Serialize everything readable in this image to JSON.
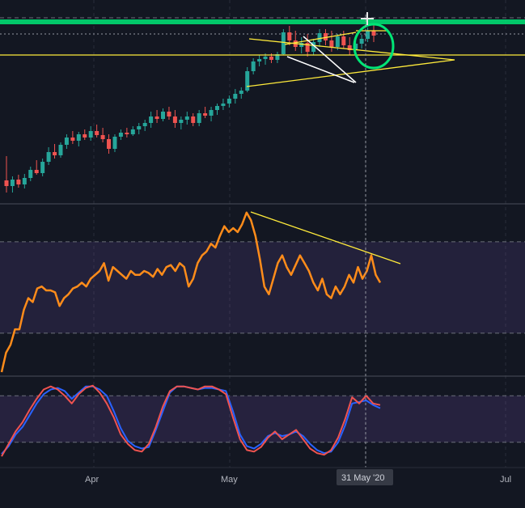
{
  "chart_data": [
    {
      "type": "candlestick",
      "colors": {
        "up": "#26a69a",
        "down": "#ef5350",
        "accent": "#00e676",
        "annotation": "#ffeb3b"
      },
      "candles": [
        {
          "o": 205,
          "h": 235,
          "l": 190,
          "c": 198
        },
        {
          "o": 198,
          "h": 210,
          "l": 190,
          "c": 206
        },
        {
          "o": 206,
          "h": 212,
          "l": 196,
          "c": 200
        },
        {
          "o": 200,
          "h": 213,
          "l": 195,
          "c": 208
        },
        {
          "o": 208,
          "h": 222,
          "l": 204,
          "c": 218
        },
        {
          "o": 218,
          "h": 230,
          "l": 212,
          "c": 214
        },
        {
          "o": 214,
          "h": 232,
          "l": 210,
          "c": 228
        },
        {
          "o": 228,
          "h": 246,
          "l": 224,
          "c": 240
        },
        {
          "o": 240,
          "h": 250,
          "l": 232,
          "c": 236
        },
        {
          "o": 236,
          "h": 252,
          "l": 233,
          "c": 249
        },
        {
          "o": 249,
          "h": 262,
          "l": 244,
          "c": 258
        },
        {
          "o": 258,
          "h": 266,
          "l": 250,
          "c": 254
        },
        {
          "o": 254,
          "h": 265,
          "l": 247,
          "c": 262
        },
        {
          "o": 262,
          "h": 268,
          "l": 255,
          "c": 258
        },
        {
          "o": 258,
          "h": 272,
          "l": 254,
          "c": 266
        },
        {
          "o": 266,
          "h": 274,
          "l": 258,
          "c": 261
        },
        {
          "o": 261,
          "h": 270,
          "l": 252,
          "c": 256
        },
        {
          "o": 256,
          "h": 262,
          "l": 238,
          "c": 244
        },
        {
          "o": 244,
          "h": 262,
          "l": 240,
          "c": 259
        },
        {
          "o": 259,
          "h": 268,
          "l": 255,
          "c": 264
        },
        {
          "o": 264,
          "h": 270,
          "l": 258,
          "c": 262
        },
        {
          "o": 262,
          "h": 272,
          "l": 260,
          "c": 268
        },
        {
          "o": 268,
          "h": 276,
          "l": 262,
          "c": 272
        },
        {
          "o": 272,
          "h": 280,
          "l": 266,
          "c": 276
        },
        {
          "o": 276,
          "h": 290,
          "l": 270,
          "c": 284
        },
        {
          "o": 284,
          "h": 292,
          "l": 276,
          "c": 281
        },
        {
          "o": 281,
          "h": 294,
          "l": 278,
          "c": 290
        },
        {
          "o": 290,
          "h": 296,
          "l": 280,
          "c": 284
        },
        {
          "o": 284,
          "h": 292,
          "l": 270,
          "c": 276
        },
        {
          "o": 276,
          "h": 284,
          "l": 268,
          "c": 280
        },
        {
          "o": 280,
          "h": 290,
          "l": 274,
          "c": 284
        },
        {
          "o": 284,
          "h": 288,
          "l": 272,
          "c": 276
        },
        {
          "o": 276,
          "h": 292,
          "l": 272,
          "c": 288
        },
        {
          "o": 288,
          "h": 296,
          "l": 282,
          "c": 285
        },
        {
          "o": 285,
          "h": 296,
          "l": 278,
          "c": 292
        },
        {
          "o": 292,
          "h": 300,
          "l": 286,
          "c": 297
        },
        {
          "o": 297,
          "h": 306,
          "l": 292,
          "c": 300
        },
        {
          "o": 300,
          "h": 310,
          "l": 295,
          "c": 306
        },
        {
          "o": 306,
          "h": 318,
          "l": 300,
          "c": 312
        },
        {
          "o": 312,
          "h": 320,
          "l": 306,
          "c": 316
        },
        {
          "o": 316,
          "h": 345,
          "l": 314,
          "c": 340
        },
        {
          "o": 340,
          "h": 356,
          "l": 336,
          "c": 352
        },
        {
          "o": 352,
          "h": 360,
          "l": 346,
          "c": 355
        },
        {
          "o": 355,
          "h": 362,
          "l": 348,
          "c": 358
        },
        {
          "o": 358,
          "h": 362,
          "l": 350,
          "c": 354
        },
        {
          "o": 354,
          "h": 364,
          "l": 350,
          "c": 361
        },
        {
          "o": 361,
          "h": 392,
          "l": 360,
          "c": 388
        },
        {
          "o": 388,
          "h": 396,
          "l": 372,
          "c": 378
        },
        {
          "o": 378,
          "h": 390,
          "l": 365,
          "c": 370
        },
        {
          "o": 370,
          "h": 382,
          "l": 362,
          "c": 375
        },
        {
          "o": 375,
          "h": 386,
          "l": 358,
          "c": 364
        },
        {
          "o": 364,
          "h": 380,
          "l": 360,
          "c": 376
        },
        {
          "o": 376,
          "h": 392,
          "l": 370,
          "c": 387
        },
        {
          "o": 387,
          "h": 392,
          "l": 372,
          "c": 378
        },
        {
          "o": 378,
          "h": 390,
          "l": 364,
          "c": 370
        },
        {
          "o": 370,
          "h": 386,
          "l": 366,
          "c": 383
        },
        {
          "o": 383,
          "h": 390,
          "l": 368,
          "c": 372
        },
        {
          "o": 372,
          "h": 382,
          "l": 360,
          "c": 366
        },
        {
          "o": 366,
          "h": 378,
          "l": 362,
          "c": 374
        },
        {
          "o": 374,
          "h": 385,
          "l": 368,
          "c": 380
        },
        {
          "o": 380,
          "h": 394,
          "l": 376,
          "c": 390
        },
        {
          "o": 390,
          "h": 398,
          "l": 376,
          "c": 384
        }
      ],
      "price_annotations": {
        "resistance_band": [
          398,
          404
        ],
        "horizontal_line": 360,
        "dotted_line": 386
      }
    },
    {
      "type": "line",
      "series": [
        {
          "values": [
            20,
            30,
            34,
            42,
            42,
            52,
            58,
            56,
            63,
            64,
            62,
            62,
            61,
            54,
            58,
            60,
            63,
            64,
            66,
            64,
            68,
            70,
            72,
            76,
            67,
            74,
            72,
            70,
            68,
            72,
            70,
            70,
            72,
            71,
            69,
            73,
            70,
            74,
            75,
            72,
            76,
            74,
            64,
            68,
            76,
            80,
            82,
            86,
            84,
            90,
            95,
            92,
            94,
            92,
            96,
            102,
            98,
            90,
            78,
            64,
            60,
            68,
            76,
            80,
            74,
            70,
            75,
            80,
            76,
            72,
            66,
            62,
            68,
            60,
            58,
            64,
            60,
            64,
            70,
            66,
            74,
            68,
            72,
            80,
            70,
            66
          ]
        }
      ],
      "ylim": [
        20,
        104
      ],
      "band": [
        40,
        87
      ],
      "trendline_color": "#ffeb3b",
      "line_color": "#ff8c1a"
    },
    {
      "type": "line",
      "series": [
        {
          "values": [
            5,
            15,
            30,
            40,
            55,
            70,
            82,
            88,
            90,
            86,
            76,
            84,
            92,
            92,
            88,
            80,
            60,
            38,
            22,
            15,
            12,
            14,
            36,
            60,
            84,
            92,
            92,
            90,
            88,
            90,
            90,
            88,
            86,
            60,
            30,
            15,
            12,
            18,
            28,
            32,
            28,
            30,
            34,
            28,
            18,
            10,
            6,
            8,
            20,
            42,
            70,
            72,
            74,
            68,
            64
          ]
        },
        {
          "values": [
            2,
            18,
            34,
            46,
            62,
            76,
            88,
            92,
            88,
            80,
            70,
            82,
            90,
            93,
            84,
            70,
            52,
            30,
            18,
            10,
            8,
            18,
            40,
            66,
            86,
            92,
            92,
            90,
            88,
            92,
            92,
            88,
            82,
            52,
            24,
            10,
            8,
            14,
            26,
            34,
            24,
            30,
            36,
            24,
            12,
            6,
            4,
            10,
            26,
            50,
            78,
            70,
            80,
            70,
            68
          ]
        }
      ],
      "ylim": [
        0,
        100
      ],
      "band": [
        20,
        80
      ],
      "series_colors": [
        "#2962ff",
        "#ef5350"
      ]
    }
  ],
  "x_axis": {
    "labels": [
      "Apr",
      "May",
      "31 May '20",
      "Jul"
    ]
  }
}
